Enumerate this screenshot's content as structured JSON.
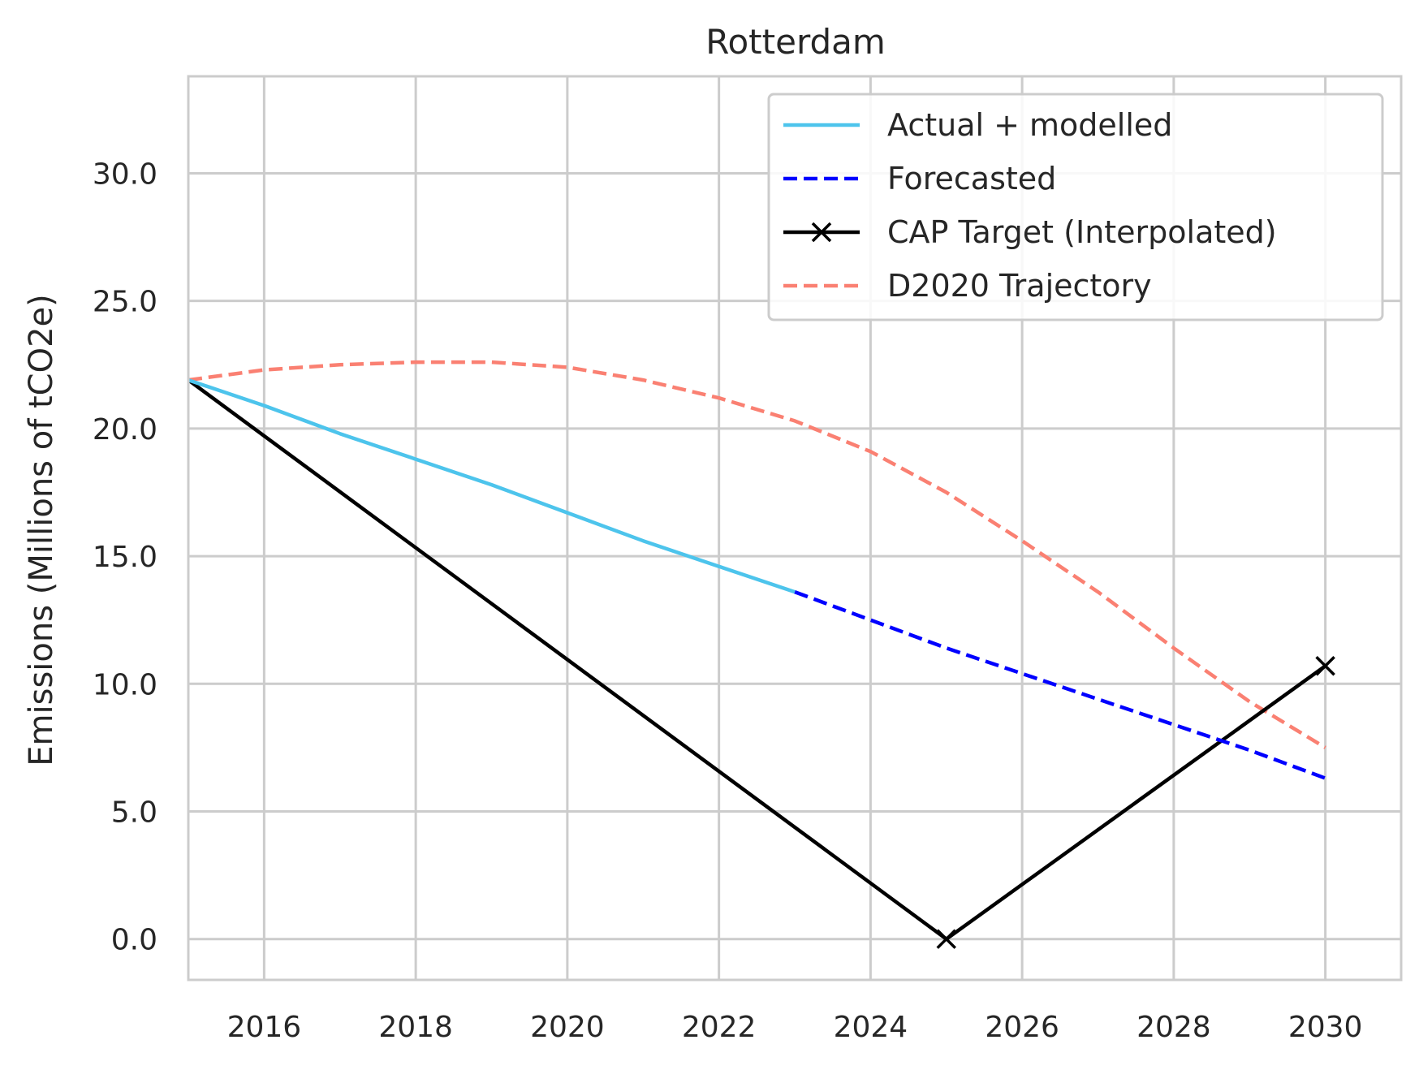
{
  "chart_data": {
    "type": "line",
    "title": "Rotterdam",
    "xlabel": "",
    "ylabel": "Emissions (Millions of tCO2e)",
    "xlim": [
      2015,
      2031
    ],
    "ylim": [
      -1.6,
      33.8
    ],
    "x_ticks": [
      2016,
      2018,
      2020,
      2022,
      2024,
      2026,
      2028,
      2030
    ],
    "x_tick_labels": [
      "2016",
      "2018",
      "2020",
      "2022",
      "2024",
      "2026",
      "2028",
      "2030"
    ],
    "y_ticks": [
      0,
      5,
      10,
      15,
      20,
      25,
      30
    ],
    "y_tick_labels": [
      "0.0",
      "5.0",
      "10.0",
      "15.0",
      "20.0",
      "25.0",
      "30.0"
    ],
    "grid": true,
    "legend_position": "top-right",
    "series": [
      {
        "name": "Actual + modelled",
        "color": "#4dc4ec",
        "dash": "solid",
        "marker": "none",
        "x": [
          2015,
          2016,
          2017,
          2018,
          2019,
          2020,
          2021,
          2022,
          2023
        ],
        "y": [
          21.9,
          20.9,
          19.8,
          18.8,
          17.8,
          16.7,
          15.6,
          14.6,
          13.6
        ]
      },
      {
        "name": "Forecasted",
        "color": "#0000ff",
        "dash": "dashed",
        "marker": "none",
        "x": [
          2023,
          2024,
          2025,
          2026,
          2027,
          2028,
          2029,
          2030
        ],
        "y": [
          13.6,
          12.5,
          11.4,
          10.4,
          9.4,
          8.4,
          7.4,
          6.3
        ]
      },
      {
        "name": "CAP Target (Interpolated)",
        "color": "#000000",
        "dash": "solid",
        "marker": "x",
        "marker_points": [
          [
            2025,
            0.0
          ],
          [
            2030,
            10.7
          ]
        ],
        "x": [
          2015,
          2025,
          2030
        ],
        "y": [
          21.9,
          0.0,
          10.7
        ]
      },
      {
        "name": "D2020 Trajectory",
        "color": "#fa8072",
        "dash": "dashed",
        "marker": "none",
        "x": [
          2015,
          2016,
          2017,
          2018,
          2019,
          2020,
          2021,
          2022,
          2023,
          2024,
          2025,
          2026,
          2027,
          2028,
          2029,
          2030
        ],
        "y": [
          21.9,
          22.3,
          22.5,
          22.6,
          22.6,
          22.4,
          21.9,
          21.2,
          20.3,
          19.1,
          17.5,
          15.6,
          13.6,
          11.4,
          9.3,
          7.5
        ]
      }
    ]
  }
}
